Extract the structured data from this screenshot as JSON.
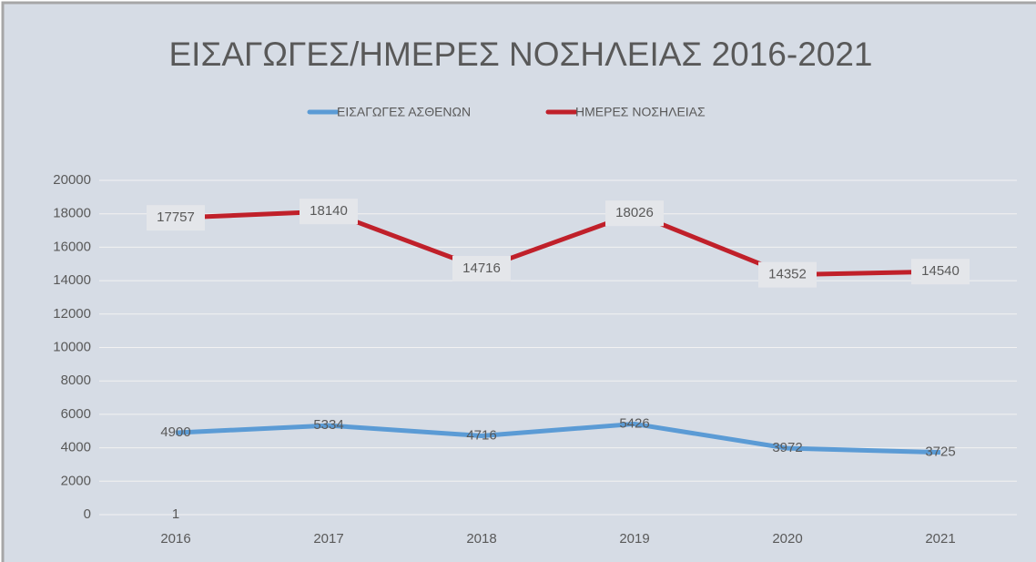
{
  "chart_data": {
    "type": "line",
    "title": "ΕΙΣΑΓΩΓΕΣ/ΗΜΕΡΕΣ ΝΟΣΗΛΕΙΑΣ 2016-2021",
    "categories": [
      "2016",
      "2017",
      "2018",
      "2019",
      "2020",
      "2021"
    ],
    "series": [
      {
        "name": "ΕΙΣΑΓΩΓΕΣ ΑΣΘΕΝΩΝ",
        "color": "#5b9bd5",
        "values": [
          4900,
          5334,
          4716,
          5426,
          3972,
          3725
        ]
      },
      {
        "name": "ΗΜΕΡΕΣ ΝΟΣΗΛΕΙΑΣ",
        "color": "#c0202a",
        "values": [
          17757,
          18140,
          14716,
          18026,
          14352,
          14540
        ]
      }
    ],
    "annotation": "1",
    "ylim": [
      0,
      20000
    ],
    "yticks": [
      0,
      2000,
      4000,
      6000,
      8000,
      10000,
      12000,
      14000,
      16000,
      18000,
      20000
    ],
    "grid": true,
    "legend": "top",
    "data_labels": true
  }
}
